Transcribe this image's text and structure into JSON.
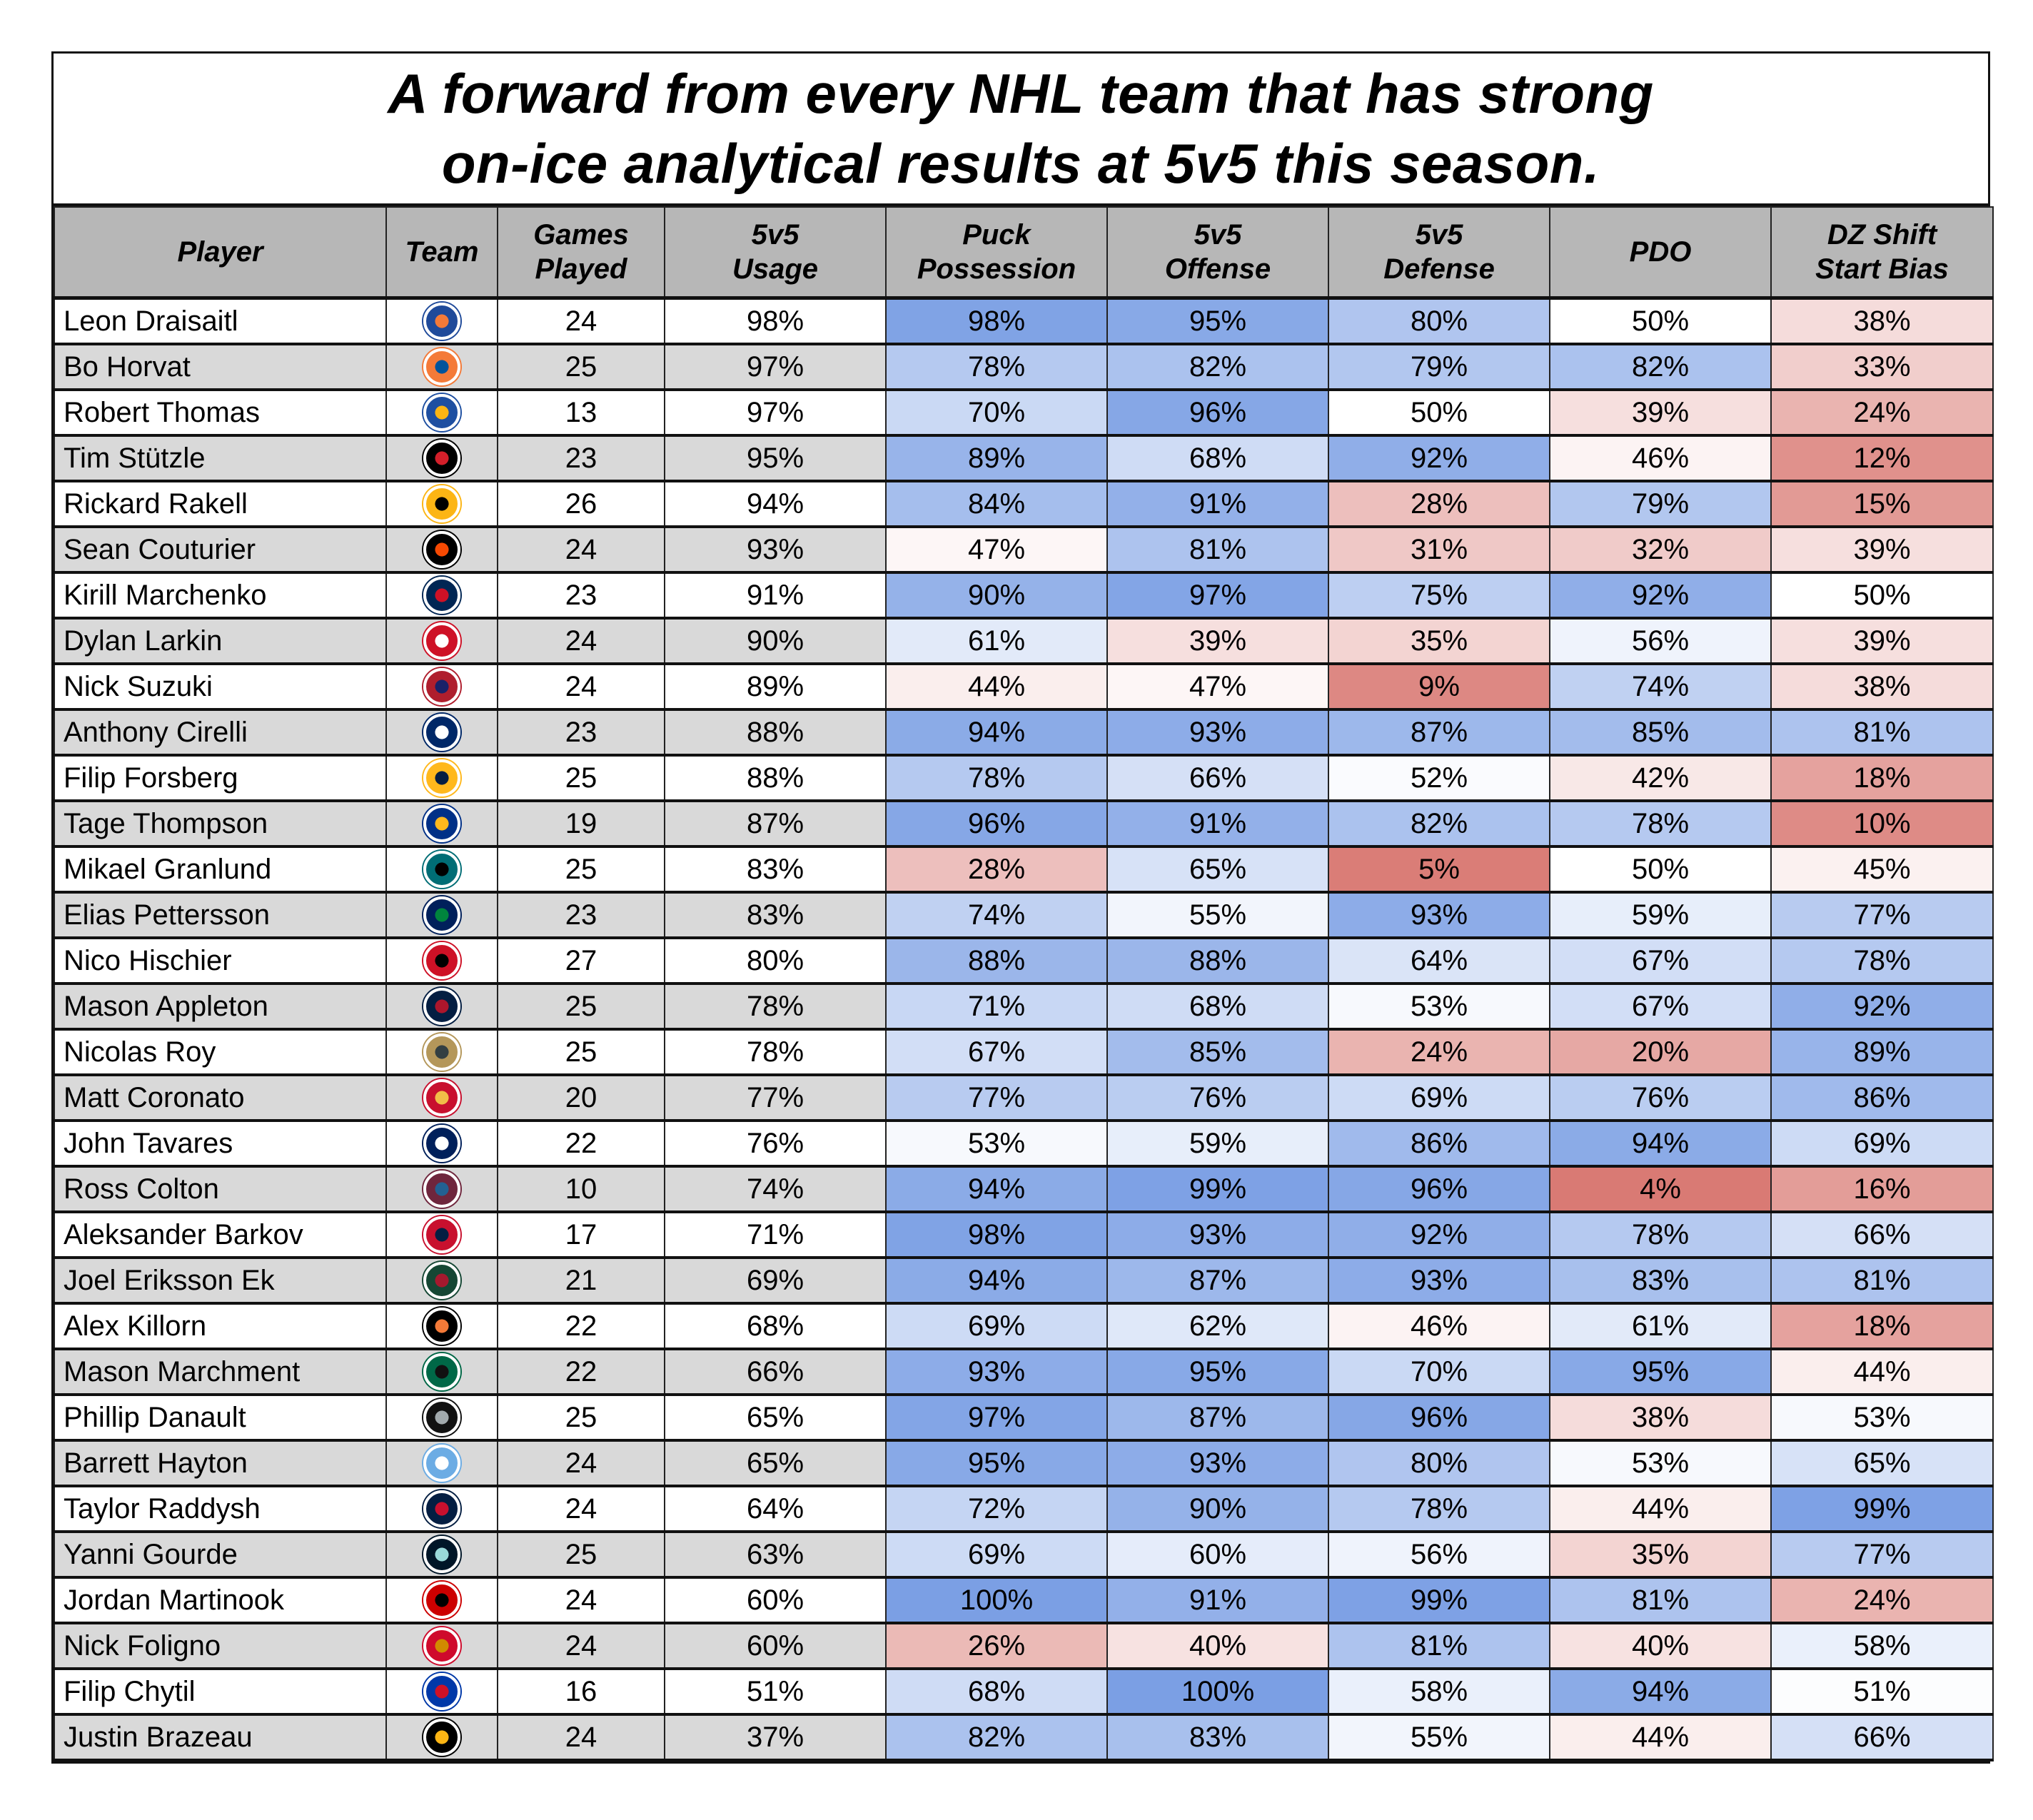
{
  "title": {
    "line1": "A forward from every NHL team that has strong",
    "line2": "on-ice analytical results at 5v5 this season."
  },
  "headers": {
    "player": "Player",
    "team": "Team",
    "games": [
      "Games",
      "Played"
    ],
    "usage": [
      "5v5",
      "Usage"
    ],
    "puck": [
      "Puck",
      "Possession"
    ],
    "offense": [
      "5v5",
      "Offense"
    ],
    "defense": [
      "5v5",
      "Defense"
    ],
    "pdo": "PDO",
    "dz": [
      "DZ Shift",
      "Start Bias"
    ]
  },
  "color_scale": {
    "low": "#d97a74",
    "mid": "#ffffff",
    "high": "#7b9fe4"
  },
  "rows": [
    {
      "player": "Leon Draisaitl",
      "team": "Edmonton Oilers",
      "team_icon": "oilers-logo",
      "team_colors": [
        "#1f4a9a",
        "#f47a38"
      ],
      "gp": 24,
      "usage": "98%",
      "puck": 98,
      "off": 95,
      "def": 80,
      "pdo": 50,
      "dz": 38
    },
    {
      "player": "Bo Horvat",
      "team": "New York Islanders",
      "team_icon": "islanders-logo",
      "team_colors": [
        "#f47a38",
        "#00539b"
      ],
      "gp": 25,
      "usage": "97%",
      "puck": 78,
      "off": 82,
      "def": 79,
      "pdo": 82,
      "dz": 33
    },
    {
      "player": "Robert Thomas",
      "team": "St. Louis Blues",
      "team_icon": "blues-logo",
      "team_colors": [
        "#1e4fa1",
        "#fcb514"
      ],
      "gp": 13,
      "usage": "97%",
      "puck": 70,
      "off": 96,
      "def": 50,
      "pdo": 39,
      "dz": 24
    },
    {
      "player": "Tim Stützle",
      "team": "Ottawa Senators",
      "team_icon": "senators-logo",
      "team_colors": [
        "#000000",
        "#d41f2a"
      ],
      "gp": 23,
      "usage": "95%",
      "puck": 89,
      "off": 68,
      "def": 92,
      "pdo": 46,
      "dz": 12
    },
    {
      "player": "Rickard Rakell",
      "team": "Pittsburgh Penguins",
      "team_icon": "penguins-logo",
      "team_colors": [
        "#fcb514",
        "#000000"
      ],
      "gp": 26,
      "usage": "94%",
      "puck": 84,
      "off": 91,
      "def": 28,
      "pdo": 79,
      "dz": 15
    },
    {
      "player": "Sean Couturier",
      "team": "Philadelphia Flyers",
      "team_icon": "flyers-logo",
      "team_colors": [
        "#000000",
        "#f74902"
      ],
      "gp": 24,
      "usage": "93%",
      "puck": 47,
      "off": 81,
      "def": 31,
      "pdo": 32,
      "dz": 39
    },
    {
      "player": "Kirill Marchenko",
      "team": "Columbus Blue Jackets",
      "team_icon": "blue-jackets-logo",
      "team_colors": [
        "#002654",
        "#ce1126"
      ],
      "gp": 23,
      "usage": "91%",
      "puck": 90,
      "off": 97,
      "def": 75,
      "pdo": 92,
      "dz": 50
    },
    {
      "player": "Dylan Larkin",
      "team": "Detroit Red Wings",
      "team_icon": "red-wings-logo",
      "team_colors": [
        "#ce1126",
        "#ffffff"
      ],
      "gp": 24,
      "usage": "90%",
      "puck": 61,
      "off": 39,
      "def": 35,
      "pdo": 56,
      "dz": 39
    },
    {
      "player": "Nick Suzuki",
      "team": "Montreal Canadiens",
      "team_icon": "canadiens-logo",
      "team_colors": [
        "#af1e2d",
        "#192168"
      ],
      "gp": 24,
      "usage": "89%",
      "puck": 44,
      "off": 47,
      "def": 9,
      "pdo": 74,
      "dz": 38
    },
    {
      "player": "Anthony Cirelli",
      "team": "Tampa Bay Lightning",
      "team_icon": "lightning-logo",
      "team_colors": [
        "#002868",
        "#ffffff"
      ],
      "gp": 23,
      "usage": "88%",
      "puck": 94,
      "off": 93,
      "def": 87,
      "pdo": 85,
      "dz": 81
    },
    {
      "player": "Filip Forsberg",
      "team": "Nashville Predators",
      "team_icon": "predators-logo",
      "team_colors": [
        "#ffb81c",
        "#041e42"
      ],
      "gp": 25,
      "usage": "88%",
      "puck": 78,
      "off": 66,
      "def": 52,
      "pdo": 42,
      "dz": 18
    },
    {
      "player": "Tage Thompson",
      "team": "Buffalo Sabres",
      "team_icon": "sabres-logo",
      "team_colors": [
        "#003087",
        "#ffb81c"
      ],
      "gp": 19,
      "usage": "87%",
      "puck": 96,
      "off": 91,
      "def": 82,
      "pdo": 78,
      "dz": 10
    },
    {
      "player": "Mikael Granlund",
      "team": "San Jose Sharks",
      "team_icon": "sharks-logo",
      "team_colors": [
        "#006d75",
        "#000000"
      ],
      "gp": 25,
      "usage": "83%",
      "puck": 28,
      "off": 65,
      "def": 5,
      "pdo": 50,
      "dz": 45
    },
    {
      "player": "Elias Pettersson",
      "team": "Vancouver Canucks",
      "team_icon": "canucks-logo",
      "team_colors": [
        "#00205b",
        "#00843d"
      ],
      "gp": 23,
      "usage": "83%",
      "puck": 74,
      "off": 55,
      "def": 93,
      "pdo": 59,
      "dz": 77
    },
    {
      "player": "Nico Hischier",
      "team": "New Jersey Devils",
      "team_icon": "devils-logo",
      "team_colors": [
        "#ce1126",
        "#000000"
      ],
      "gp": 27,
      "usage": "80%",
      "puck": 88,
      "off": 88,
      "def": 64,
      "pdo": 67,
      "dz": 78
    },
    {
      "player": "Mason Appleton",
      "team": "Winnipeg Jets",
      "team_icon": "jets-logo",
      "team_colors": [
        "#041e42",
        "#ac162c"
      ],
      "gp": 25,
      "usage": "78%",
      "puck": 71,
      "off": 68,
      "def": 53,
      "pdo": 67,
      "dz": 92
    },
    {
      "player": "Nicolas Roy",
      "team": "Vegas Golden Knights",
      "team_icon": "golden-knights-logo",
      "team_colors": [
        "#b4975a",
        "#333f42"
      ],
      "gp": 25,
      "usage": "78%",
      "puck": 67,
      "off": 85,
      "def": 24,
      "pdo": 20,
      "dz": 89
    },
    {
      "player": "Matt Coronato",
      "team": "Calgary Flames",
      "team_icon": "flames-logo",
      "team_colors": [
        "#c8102e",
        "#f1be48"
      ],
      "gp": 20,
      "usage": "77%",
      "puck": 77,
      "off": 76,
      "def": 69,
      "pdo": 76,
      "dz": 86
    },
    {
      "player": "John Tavares",
      "team": "Toronto Maple Leafs",
      "team_icon": "maple-leafs-logo",
      "team_colors": [
        "#00205b",
        "#ffffff"
      ],
      "gp": 22,
      "usage": "76%",
      "puck": 53,
      "off": 59,
      "def": 86,
      "pdo": 94,
      "dz": 69
    },
    {
      "player": "Ross Colton",
      "team": "Colorado Avalanche",
      "team_icon": "avalanche-logo",
      "team_colors": [
        "#6f263d",
        "#236192"
      ],
      "gp": 10,
      "usage": "74%",
      "puck": 94,
      "off": 99,
      "def": 96,
      "pdo": 4,
      "dz": 16
    },
    {
      "player": "Aleksander Barkov",
      "team": "Florida Panthers",
      "team_icon": "panthers-logo",
      "team_colors": [
        "#c8102e",
        "#041e42"
      ],
      "gp": 17,
      "usage": "71%",
      "puck": 98,
      "off": 93,
      "def": 92,
      "pdo": 78,
      "dz": 66
    },
    {
      "player": "Joel Eriksson Ek",
      "team": "Minnesota Wild",
      "team_icon": "wild-logo",
      "team_colors": [
        "#154734",
        "#a6192e"
      ],
      "gp": 21,
      "usage": "69%",
      "puck": 94,
      "off": 87,
      "def": 93,
      "pdo": 83,
      "dz": 81
    },
    {
      "player": "Alex Killorn",
      "team": "Anaheim Ducks",
      "team_icon": "ducks-logo",
      "team_colors": [
        "#000000",
        "#f47a38"
      ],
      "gp": 22,
      "usage": "68%",
      "puck": 69,
      "off": 62,
      "def": 46,
      "pdo": 61,
      "dz": 18
    },
    {
      "player": "Mason Marchment",
      "team": "Dallas Stars",
      "team_icon": "stars-logo",
      "team_colors": [
        "#006847",
        "#111111"
      ],
      "gp": 22,
      "usage": "66%",
      "puck": 93,
      "off": 95,
      "def": 70,
      "pdo": 95,
      "dz": 44
    },
    {
      "player": "Phillip Danault",
      "team": "Los Angeles Kings",
      "team_icon": "kings-logo",
      "team_colors": [
        "#111111",
        "#a2aaad"
      ],
      "gp": 25,
      "usage": "65%",
      "puck": 97,
      "off": 87,
      "def": 96,
      "pdo": 38,
      "dz": 53
    },
    {
      "player": "Barrett Hayton",
      "team": "Utah Hockey Club",
      "team_icon": "utah-logo",
      "team_colors": [
        "#6cace4",
        "#ffffff"
      ],
      "gp": 24,
      "usage": "65%",
      "puck": 95,
      "off": 93,
      "def": 80,
      "pdo": 53,
      "dz": 65
    },
    {
      "player": "Taylor Raddysh",
      "team": "Washington Capitals",
      "team_icon": "capitals-logo",
      "team_colors": [
        "#041e42",
        "#c8102e"
      ],
      "gp": 24,
      "usage": "64%",
      "puck": 72,
      "off": 90,
      "def": 78,
      "pdo": 44,
      "dz": 99
    },
    {
      "player": "Yanni Gourde",
      "team": "Seattle Kraken",
      "team_icon": "kraken-logo",
      "team_colors": [
        "#001628",
        "#99d9d9"
      ],
      "gp": 25,
      "usage": "63%",
      "puck": 69,
      "off": 60,
      "def": 56,
      "pdo": 35,
      "dz": 77
    },
    {
      "player": "Jordan Martinook",
      "team": "Carolina Hurricanes",
      "team_icon": "hurricanes-logo",
      "team_colors": [
        "#cc0000",
        "#000000"
      ],
      "gp": 24,
      "usage": "60%",
      "puck": 100,
      "off": 91,
      "def": 99,
      "pdo": 81,
      "dz": 24
    },
    {
      "player": "Nick Foligno",
      "team": "Chicago Blackhawks",
      "team_icon": "blackhawks-logo",
      "team_colors": [
        "#cf0a2c",
        "#d18a00"
      ],
      "gp": 24,
      "usage": "60%",
      "puck": 26,
      "off": 40,
      "def": 81,
      "pdo": 40,
      "dz": 58
    },
    {
      "player": "Filip Chytil",
      "team": "New York Rangers",
      "team_icon": "rangers-logo",
      "team_colors": [
        "#0038a8",
        "#ce1126"
      ],
      "gp": 16,
      "usage": "51%",
      "puck": 68,
      "off": 100,
      "def": 58,
      "pdo": 94,
      "dz": 51
    },
    {
      "player": "Justin Brazeau",
      "team": "Boston Bruins",
      "team_icon": "bruins-logo",
      "team_colors": [
        "#000000",
        "#fcb514"
      ],
      "gp": 24,
      "usage": "37%",
      "puck": 82,
      "off": 83,
      "def": 55,
      "pdo": 44,
      "dz": 66
    }
  ]
}
